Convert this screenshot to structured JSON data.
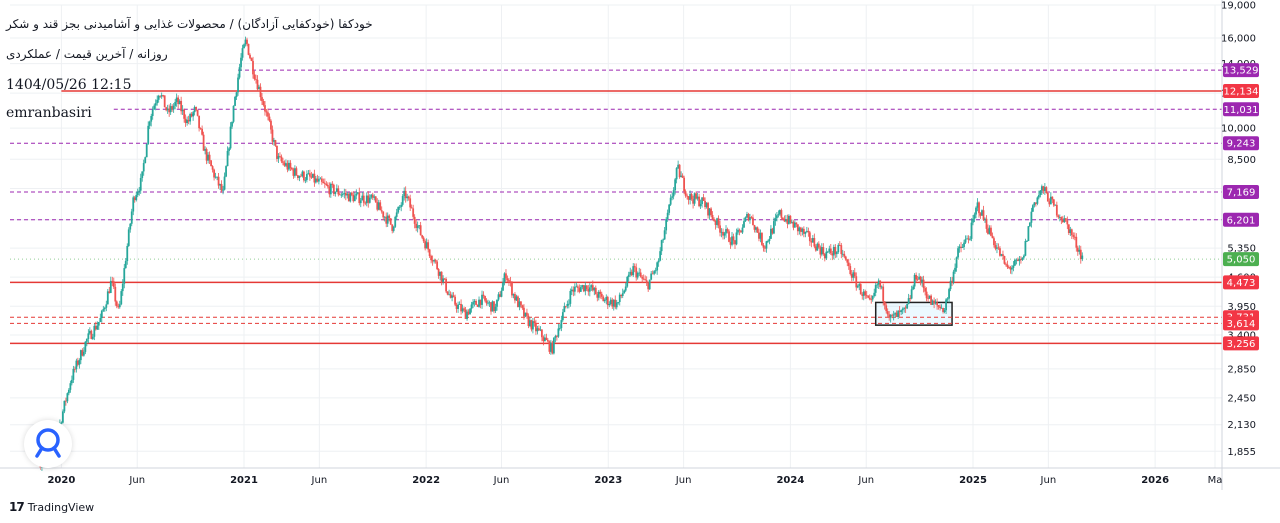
{
  "header": {
    "symbol_title": "خودکفا (خودکفایی آزادگان) / محصولات غذایی و آشامیدنی بجز قند و شکر",
    "subtitle": "روزانه / آخرین قیمت / عملکردی",
    "date": "1404/05/26 12:15",
    "author": "emranbasiri"
  },
  "branding": {
    "logo_text": "TradingView",
    "logo_mark": "17",
    "author_icon": "lamp-pin-icon"
  },
  "colors": {
    "up": "#26a69a",
    "down": "#ef5350",
    "red_line": "#e53935",
    "purple_line": "#9c27b0",
    "purple_badge": "#9c27b0",
    "red_badge": "#f23645",
    "green_badge": "#4caf50",
    "box": "#212121"
  },
  "chart_data": {
    "type": "candlestick",
    "y_scale": "log",
    "ylim": [
      1700,
      19000
    ],
    "xlim": [
      "2019-09-20",
      "2026-05-15"
    ],
    "y_ticks": [
      19000,
      16000,
      14000,
      12000,
      10000,
      8500,
      7300,
      6200,
      5350,
      4600,
      3950,
      3400,
      2850,
      2450,
      2130,
      1855
    ],
    "x_ticks": [
      {
        "label": "2020",
        "date": "2020-01-01",
        "bold": true
      },
      {
        "label": "Jun",
        "date": "2020-06-01",
        "bold": false
      },
      {
        "label": "2021",
        "date": "2021-01-01",
        "bold": true
      },
      {
        "label": "Jun",
        "date": "2021-06-01",
        "bold": false
      },
      {
        "label": "2022",
        "date": "2022-01-01",
        "bold": true
      },
      {
        "label": "Jun",
        "date": "2022-06-01",
        "bold": false
      },
      {
        "label": "2023",
        "date": "2023-01-01",
        "bold": true
      },
      {
        "label": "Jun",
        "date": "2023-06-01",
        "bold": false
      },
      {
        "label": "2024",
        "date": "2024-01-01",
        "bold": true
      },
      {
        "label": "Jun",
        "date": "2024-06-01",
        "bold": false
      },
      {
        "label": "2025",
        "date": "2025-01-01",
        "bold": true
      },
      {
        "label": "Jun",
        "date": "2025-06-01",
        "bold": false
      },
      {
        "label": "2026",
        "date": "2026-01-01",
        "bold": true
      },
      {
        "label": "Ma",
        "date": "2026-05-01",
        "bold": false
      }
    ],
    "price_path": [
      [
        "2019-11-20",
        1750
      ],
      [
        "2019-12-20",
        1950
      ],
      [
        "2020-01-20",
        2700
      ],
      [
        "2020-02-20",
        3300
      ],
      [
        "2020-03-20",
        3700
      ],
      [
        "2020-04-10",
        4500
      ],
      [
        "2020-04-25",
        3800
      ],
      [
        "2020-05-10",
        5200
      ],
      [
        "2020-05-25",
        7000
      ],
      [
        "2020-06-10",
        7600
      ],
      [
        "2020-06-25",
        10500
      ],
      [
        "2020-07-15",
        12200
      ],
      [
        "2020-08-01",
        10800
      ],
      [
        "2020-08-20",
        11500
      ],
      [
        "2020-09-10",
        10300
      ],
      [
        "2020-09-25",
        11000
      ],
      [
        "2020-10-15",
        8800
      ],
      [
        "2020-11-05",
        7700
      ],
      [
        "2020-11-20",
        7100
      ],
      [
        "2020-12-10",
        11000
      ],
      [
        "2020-12-25",
        14200
      ],
      [
        "2021-01-05",
        15800
      ],
      [
        "2021-01-20",
        13500
      ],
      [
        "2021-02-10",
        11300
      ],
      [
        "2021-03-10",
        8500
      ],
      [
        "2021-04-15",
        7900
      ],
      [
        "2021-05-15",
        7700
      ],
      [
        "2021-06-20",
        7300
      ],
      [
        "2021-08-01",
        7000
      ],
      [
        "2021-09-15",
        6900
      ],
      [
        "2021-10-25",
        6000
      ],
      [
        "2021-11-20",
        7100
      ],
      [
        "2021-12-20",
        5800
      ],
      [
        "2022-01-25",
        4800
      ],
      [
        "2022-02-20",
        4100
      ],
      [
        "2022-03-20",
        3800
      ],
      [
        "2022-04-20",
        4100
      ],
      [
        "2022-05-20",
        3900
      ],
      [
        "2022-06-10",
        4700
      ],
      [
        "2022-06-25",
        4200
      ],
      [
        "2022-07-20",
        3700
      ],
      [
        "2022-08-20",
        3400
      ],
      [
        "2022-09-10",
        3150
      ],
      [
        "2022-09-25",
        3600
      ],
      [
        "2022-10-20",
        4300
      ],
      [
        "2022-11-20",
        4400
      ],
      [
        "2022-12-20",
        4100
      ],
      [
        "2023-01-20",
        4000
      ],
      [
        "2023-02-20",
        4800
      ],
      [
        "2023-03-20",
        4400
      ],
      [
        "2023-04-10",
        4900
      ],
      [
        "2023-05-01",
        6400
      ],
      [
        "2023-05-20",
        8100
      ],
      [
        "2023-06-10",
        7000
      ],
      [
        "2023-07-10",
        6800
      ],
      [
        "2023-08-10",
        6000
      ],
      [
        "2023-09-10",
        5500
      ],
      [
        "2023-10-10",
        6400
      ],
      [
        "2023-11-10",
        5400
      ],
      [
        "2023-12-10",
        6400
      ],
      [
        "2024-01-10",
        6000
      ],
      [
        "2024-02-10",
        5600
      ],
      [
        "2024-03-10",
        5200
      ],
      [
        "2024-04-10",
        5300
      ],
      [
        "2024-05-10",
        4500
      ],
      [
        "2024-06-10",
        3950
      ],
      [
        "2024-06-25",
        4500
      ],
      [
        "2024-07-20",
        3700
      ],
      [
        "2024-08-20",
        3850
      ],
      [
        "2024-09-10",
        4700
      ],
      [
        "2024-10-10",
        4000
      ],
      [
        "2024-11-05",
        3900
      ],
      [
        "2024-12-01",
        5200
      ],
      [
        "2024-12-25",
        5700
      ],
      [
        "2025-01-10",
        6700
      ],
      [
        "2025-02-10",
        5600
      ],
      [
        "2025-03-10",
        4800
      ],
      [
        "2025-04-10",
        5000
      ],
      [
        "2025-05-01",
        6700
      ],
      [
        "2025-05-20",
        7300
      ],
      [
        "2025-06-10",
        6700
      ],
      [
        "2025-07-10",
        6000
      ],
      [
        "2025-08-10",
        5050
      ]
    ],
    "levels": [
      {
        "value": 13529,
        "label": "13,529",
        "style": "purple-dashed",
        "x_start": "2020-12-20"
      },
      {
        "value": 12134,
        "label": "12,134",
        "style": "red-solid",
        "x_start": "2020-01-01"
      },
      {
        "value": 11031,
        "label": "11,031",
        "style": "purple-dashed",
        "x_start": "2020-04-15"
      },
      {
        "value": 9243,
        "label": "9,243",
        "style": "purple-dashed",
        "x_start": "2019-09-20"
      },
      {
        "value": 7169,
        "label": "7,169",
        "style": "purple-dashed",
        "x_start": "2019-09-20"
      },
      {
        "value": 6201,
        "label": "6,201",
        "style": "purple-dashed",
        "x_start": "2019-09-20"
      },
      {
        "value": 5050,
        "label": "5,050",
        "style": "current",
        "x_start": "2019-09-20"
      },
      {
        "value": 4473,
        "label": "4,473",
        "style": "red-solid",
        "x_start": "2019-09-20"
      },
      {
        "value": 3731,
        "label": "3,731",
        "style": "red-dashed",
        "x_start": "2019-09-20"
      },
      {
        "value": 3614,
        "label": "3,614",
        "style": "red-dashed",
        "x_start": "2019-09-20"
      },
      {
        "value": 3256,
        "label": "3,256",
        "style": "red-solid",
        "x_start": "2019-09-20"
      }
    ],
    "zones": [
      {
        "x0": "2024-06-20",
        "x1": "2024-11-20",
        "y0": 3580,
        "y1": 4030
      }
    ],
    "grid": true
  }
}
